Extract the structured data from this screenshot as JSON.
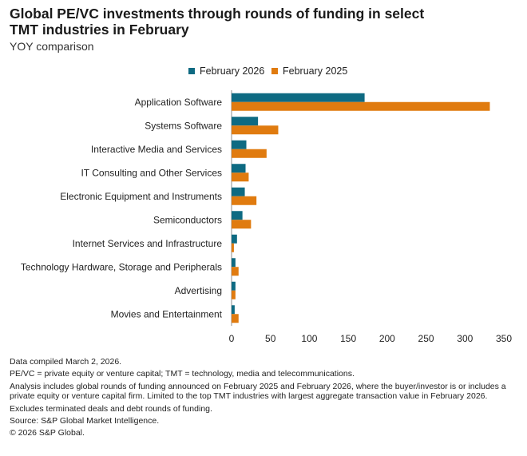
{
  "chart_data": {
    "type": "bar",
    "orientation": "horizontal",
    "title": "Global PE/VC investments through rounds of funding in select TMT industries in February",
    "subtitle": "YOY comparison",
    "xlabel": "",
    "ylabel": "",
    "xlim": [
      0,
      350
    ],
    "xticks": [
      0,
      50,
      100,
      150,
      200,
      250,
      300,
      350
    ],
    "grid": false,
    "legend_position": "top",
    "categories": [
      "Application Software",
      "Systems Software",
      "Interactive Media and Services",
      "IT Consulting and Other Services",
      "Electronic Equipment and Instruments",
      "Semiconductors",
      "Internet Services and Infrastructure",
      "Technology Hardware, Storage and Peripherals",
      "Advertising",
      "Movies and Entertainment"
    ],
    "series": [
      {
        "name": "February 2026",
        "color": "#0e6a82",
        "values": [
          171,
          34,
          19,
          18,
          17,
          14,
          7,
          5,
          5,
          4
        ]
      },
      {
        "name": "February 2025",
        "color": "#e07b0f",
        "values": [
          332,
          60,
          45,
          22,
          32,
          25,
          3,
          9,
          5,
          9
        ]
      }
    ]
  },
  "footnotes": [
    "Data compiled March 2, 2026.",
    "PE/VC = private equity or venture capital; TMT = technology, media and telecommunications.",
    "Analysis includes global rounds of funding announced on February 2025 and February 2026, where the buyer/investor is or includes a private equity or venture capital firm. Limited to the top TMT industries with largest aggregate transaction value in February 2026.",
    "Excludes terminated deals and debt rounds of funding.",
    "Source: S&P Global Market Intelligence.",
    "© 2026 S&P Global."
  ]
}
